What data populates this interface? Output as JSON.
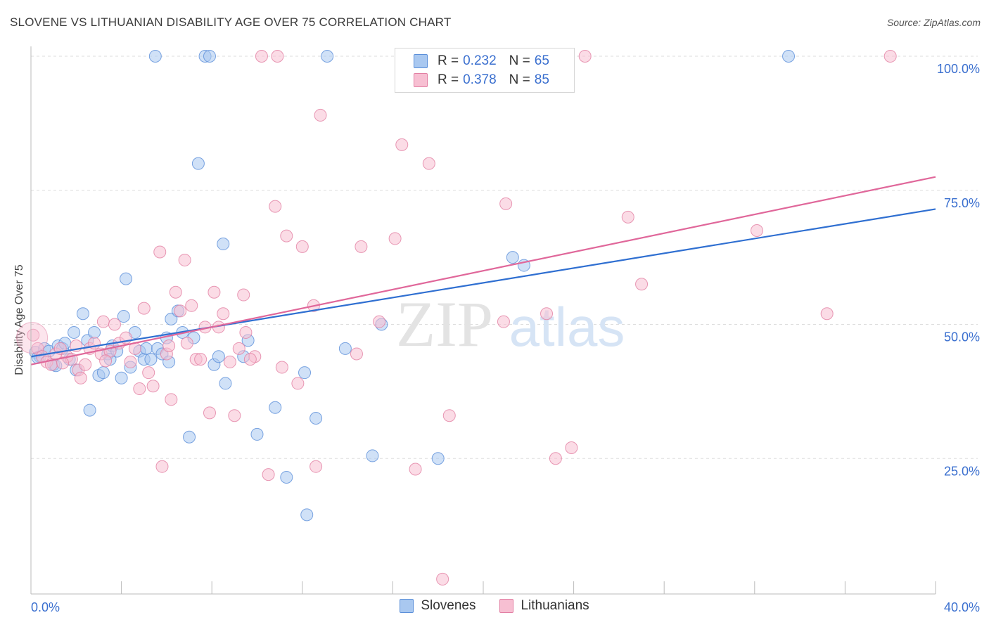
{
  "title": "SLOVENE VS LITHUANIAN DISABILITY AGE OVER 75 CORRELATION CHART",
  "source": "Source: ZipAtlas.com",
  "watermark": {
    "zip": "ZIP",
    "atlas": "atlas"
  },
  "legend": {
    "rows": [
      {
        "r_label": "R =",
        "r_value": "0.232",
        "n_label": "N =",
        "n_value": "65"
      },
      {
        "r_label": "R =",
        "r_value": "0.378",
        "n_label": "N =",
        "n_value": "85"
      }
    ]
  },
  "colors": {
    "slovenes_fill": "#a9c8f0",
    "slovenes_stroke": "#5b8fd9",
    "slovenes_line": "#2f6fd1",
    "lithuanians_fill": "#f7bfd2",
    "lithuanians_stroke": "#e27fa3",
    "lithuanians_line": "#e0679a",
    "tick_label": "#3a6fcf",
    "grid": "#dddddd"
  },
  "chart_data": {
    "type": "scatter",
    "title": "SLOVENE VS LITHUANIAN DISABILITY AGE OVER 75 CORRELATION CHART",
    "xlabel": "",
    "ylabel": "Disability Age Over 75",
    "xlim": [
      0,
      40
    ],
    "ylim": [
      0,
      105
    ],
    "x_tick_labels": [
      {
        "value": 0,
        "label": "0.0%"
      },
      {
        "value": 40,
        "label": "40.0%"
      }
    ],
    "y_tick_labels": [
      {
        "value": 25,
        "label": "25.0%"
      },
      {
        "value": 50,
        "label": "50.0%"
      },
      {
        "value": 75,
        "label": "75.0%"
      },
      {
        "value": 100,
        "label": "100.0%"
      }
    ],
    "grid": true,
    "legend_position": "top-center",
    "series": [
      {
        "name": "Slovenes",
        "trend": {
          "x": [
            0,
            40
          ],
          "y": [
            44.0,
            71.5
          ]
        },
        "points": [
          [
            0.2,
            44.8
          ],
          [
            0.4,
            44.0
          ],
          [
            0.6,
            45.5
          ],
          [
            0.8,
            45.0
          ],
          [
            1.0,
            42.5
          ],
          [
            1.2,
            46.0
          ],
          [
            1.4,
            45.5
          ],
          [
            1.5,
            46.5
          ],
          [
            1.7,
            43.5
          ],
          [
            1.9,
            48.5
          ],
          [
            2.0,
            41.5
          ],
          [
            2.3,
            52.0
          ],
          [
            2.5,
            47.0
          ],
          [
            2.6,
            34.0
          ],
          [
            2.8,
            48.5
          ],
          [
            3.0,
            40.5
          ],
          [
            3.2,
            41.0
          ],
          [
            3.4,
            44.5
          ],
          [
            3.5,
            43.5
          ],
          [
            3.6,
            46.0
          ],
          [
            3.8,
            45.0
          ],
          [
            4.0,
            40.0
          ],
          [
            4.1,
            51.5
          ],
          [
            4.2,
            58.5
          ],
          [
            4.4,
            42.0
          ],
          [
            4.6,
            48.5
          ],
          [
            4.8,
            45.0
          ],
          [
            5.0,
            43.5
          ],
          [
            5.1,
            45.5
          ],
          [
            5.3,
            43.5
          ],
          [
            5.5,
            100.0
          ],
          [
            5.6,
            45.5
          ],
          [
            5.8,
            44.5
          ],
          [
            6.0,
            47.5
          ],
          [
            6.1,
            43.0
          ],
          [
            6.2,
            51.0
          ],
          [
            6.5,
            52.5
          ],
          [
            6.7,
            48.5
          ],
          [
            7.0,
            29.0
          ],
          [
            7.2,
            47.5
          ],
          [
            7.4,
            80.0
          ],
          [
            7.7,
            100.0
          ],
          [
            7.9,
            100.0
          ],
          [
            8.1,
            42.5
          ],
          [
            8.3,
            44.0
          ],
          [
            8.5,
            65.0
          ],
          [
            8.6,
            39.0
          ],
          [
            9.4,
            44.0
          ],
          [
            9.6,
            47.0
          ],
          [
            10.0,
            29.5
          ],
          [
            10.8,
            34.5
          ],
          [
            11.3,
            21.5
          ],
          [
            12.1,
            41.0
          ],
          [
            12.2,
            14.5
          ],
          [
            12.6,
            32.5
          ],
          [
            13.1,
            100.0
          ],
          [
            13.9,
            45.5
          ],
          [
            15.1,
            25.5
          ],
          [
            15.5,
            50.0
          ],
          [
            18.0,
            25.0
          ],
          [
            21.3,
            62.5
          ],
          [
            21.8,
            61.0
          ],
          [
            33.5,
            100.0
          ],
          [
            0.3,
            43.8
          ],
          [
            1.1,
            42.3
          ]
        ]
      },
      {
        "name": "Lithuanians",
        "trend": {
          "x": [
            0,
            40
          ],
          "y": [
            42.5,
            77.5
          ]
        },
        "points": [
          [
            0.1,
            48.0
          ],
          [
            0.3,
            45.5
          ],
          [
            0.5,
            44.0
          ],
          [
            0.7,
            43.0
          ],
          [
            0.9,
            42.5
          ],
          [
            1.1,
            44.5
          ],
          [
            1.3,
            45.5
          ],
          [
            1.6,
            44.0
          ],
          [
            1.8,
            43.5
          ],
          [
            2.1,
            41.5
          ],
          [
            2.2,
            40.0
          ],
          [
            2.4,
            42.5
          ],
          [
            2.6,
            45.5
          ],
          [
            2.8,
            46.5
          ],
          [
            3.1,
            44.5
          ],
          [
            3.2,
            50.5
          ],
          [
            3.5,
            45.0
          ],
          [
            3.7,
            50.0
          ],
          [
            3.9,
            46.5
          ],
          [
            4.2,
            47.5
          ],
          [
            4.4,
            43.0
          ],
          [
            4.6,
            45.5
          ],
          [
            4.8,
            38.0
          ],
          [
            5.0,
            53.0
          ],
          [
            5.2,
            41.0
          ],
          [
            5.4,
            38.5
          ],
          [
            5.7,
            63.5
          ],
          [
            5.8,
            23.5
          ],
          [
            6.0,
            44.5
          ],
          [
            6.2,
            36.0
          ],
          [
            6.4,
            56.0
          ],
          [
            6.6,
            52.5
          ],
          [
            6.8,
            62.0
          ],
          [
            6.9,
            46.5
          ],
          [
            7.1,
            53.5
          ],
          [
            7.3,
            43.5
          ],
          [
            7.5,
            43.5
          ],
          [
            7.7,
            49.5
          ],
          [
            7.9,
            33.5
          ],
          [
            8.1,
            56.0
          ],
          [
            8.3,
            49.5
          ],
          [
            8.5,
            52.0
          ],
          [
            8.8,
            43.0
          ],
          [
            9.0,
            33.0
          ],
          [
            9.2,
            45.5
          ],
          [
            9.4,
            55.5
          ],
          [
            9.5,
            48.5
          ],
          [
            9.9,
            44.0
          ],
          [
            10.2,
            100.0
          ],
          [
            10.5,
            22.0
          ],
          [
            10.8,
            72.0
          ],
          [
            10.9,
            100.0
          ],
          [
            11.1,
            42.0
          ],
          [
            11.3,
            66.5
          ],
          [
            11.8,
            39.0
          ],
          [
            12.0,
            64.5
          ],
          [
            12.5,
            53.5
          ],
          [
            12.6,
            23.5
          ],
          [
            12.8,
            89.0
          ],
          [
            14.4,
            44.5
          ],
          [
            14.6,
            64.5
          ],
          [
            15.4,
            50.5
          ],
          [
            16.1,
            66.0
          ],
          [
            16.4,
            83.5
          ],
          [
            17.0,
            23.0
          ],
          [
            17.6,
            80.0
          ],
          [
            18.5,
            33.0
          ],
          [
            18.2,
            2.5
          ],
          [
            20.9,
            50.5
          ],
          [
            21.0,
            72.5
          ],
          [
            22.8,
            52.0
          ],
          [
            23.2,
            25.0
          ],
          [
            23.9,
            27.0
          ],
          [
            24.5,
            100.0
          ],
          [
            26.4,
            70.0
          ],
          [
            27.0,
            57.5
          ],
          [
            32.1,
            67.5
          ],
          [
            35.2,
            52.0
          ],
          [
            38.0,
            100.0
          ],
          [
            22.0,
            100.0
          ],
          [
            2.0,
            46.0
          ],
          [
            1.4,
            42.8
          ],
          [
            3.3,
            43.2
          ],
          [
            6.1,
            46.0
          ],
          [
            9.7,
            43.5
          ]
        ]
      }
    ]
  },
  "bottom_legend": [
    {
      "label": "Slovenes"
    },
    {
      "label": "Lithuanians"
    }
  ]
}
